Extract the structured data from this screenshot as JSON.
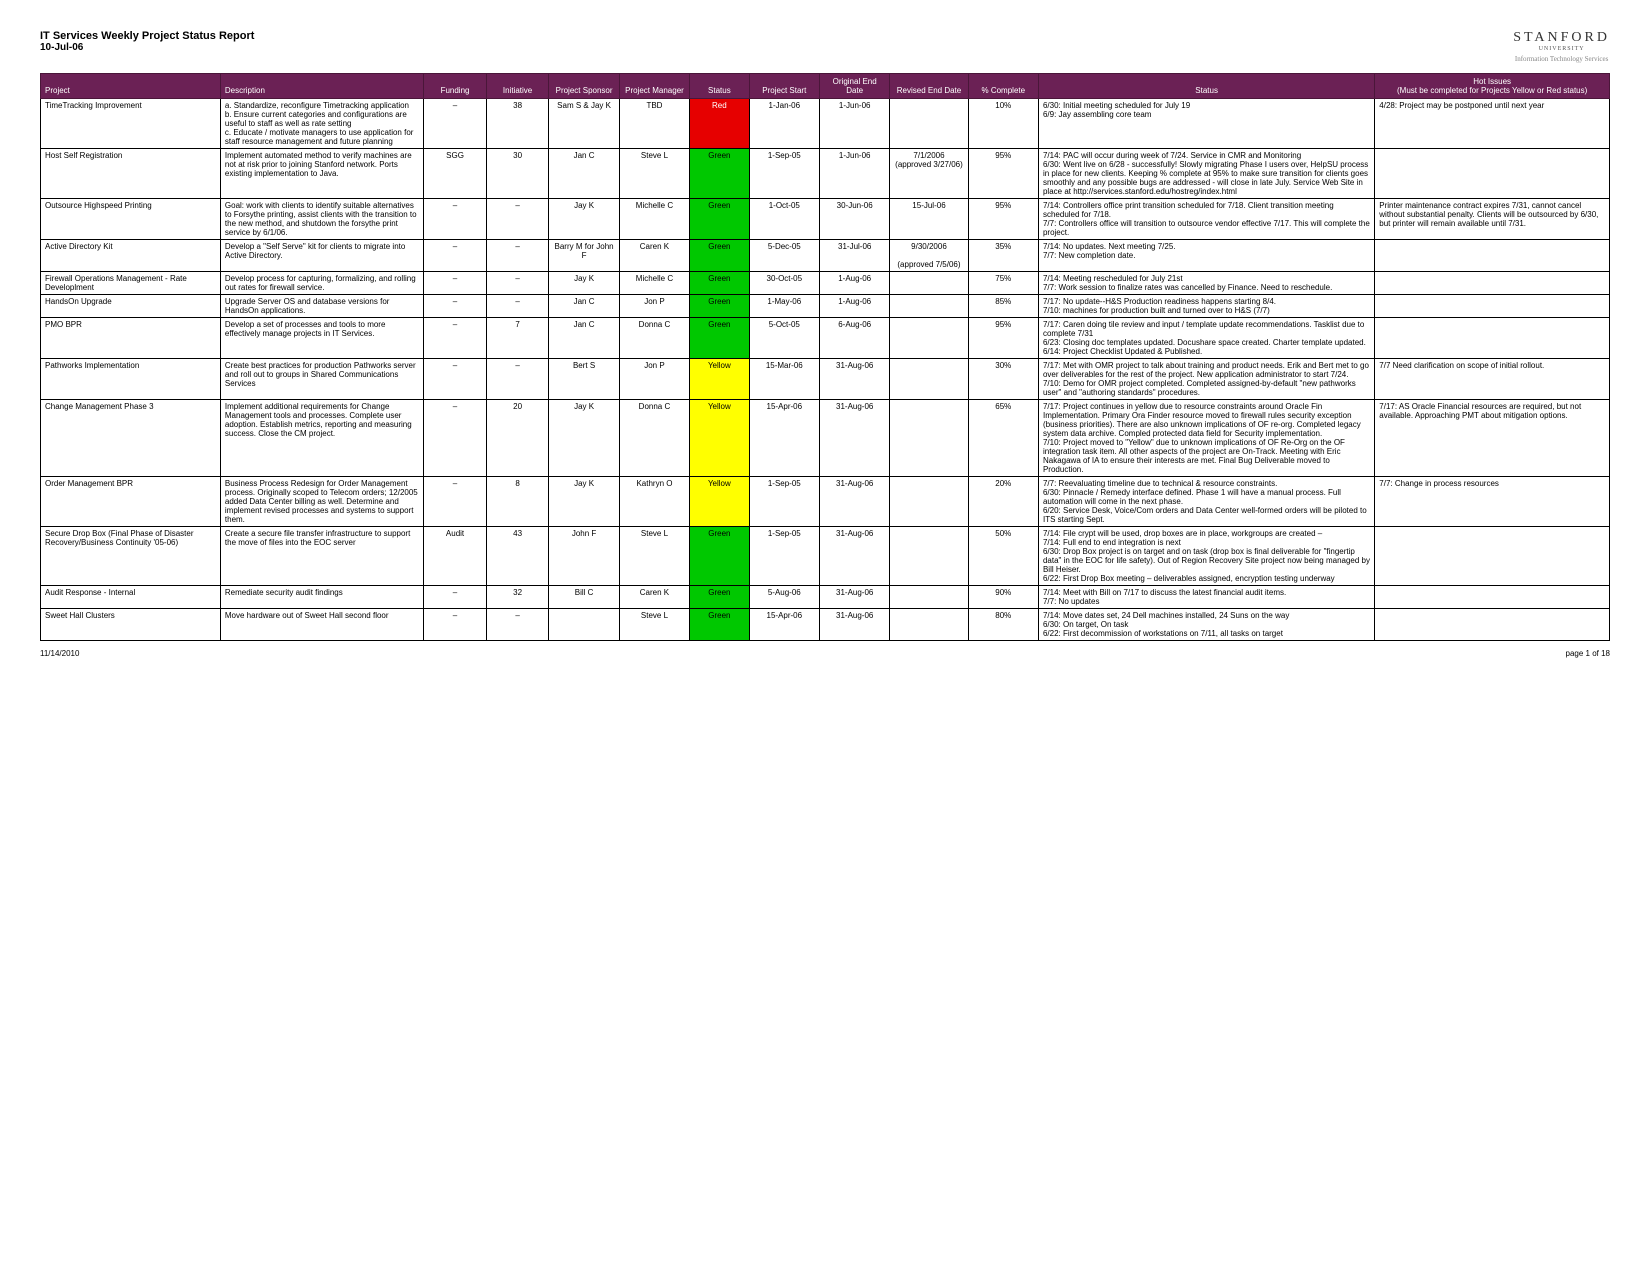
{
  "header": {
    "title": "IT Services Weekly Project Status Report",
    "date": "10-Jul-06",
    "org": "STANFORD",
    "org_sub": "UNIVERSITY",
    "org_sub2": "Information Technology Services"
  },
  "columns": [
    "Project",
    "Description",
    "Funding",
    "Initiative",
    "Project Sponsor",
    "Project Manager",
    "Status",
    "Project Start",
    "Original End Date",
    "Revised End Date",
    "% Complete",
    "Status",
    "Hot Issues\n(Must be completed for Projects Yellow or Red status)"
  ],
  "rows": [
    {
      "project": "TimeTracking Improvement",
      "description": "a. Standardize, reconfigure Timetracking application\nb. Ensure current categories and configurations are useful to staff as well as rate setting\nc. Educate / motivate managers to use application for staff resource management and future planning",
      "funding": "–",
      "initiative": "38",
      "sponsor": "Sam S & Jay K",
      "manager": "TBD",
      "status": "Red",
      "status_color": "#e60000",
      "start": "1-Jan-06",
      "end": "1-Jun-06",
      "revised": "",
      "pct": "10%",
      "notes": "6/30: Initial meeting scheduled for July 19\n6/9: Jay assembling core team",
      "hot": "4/28: Project may be postponed until next year"
    },
    {
      "project": "Host Self Registration",
      "description": "Implement automated method to verify machines are not at risk prior to joining Stanford network. Ports existing implementation to Java.",
      "funding": "SGG",
      "initiative": "30",
      "sponsor": "Jan C",
      "manager": "Steve L",
      "status": "Green",
      "status_color": "#00c800",
      "start": "1-Sep-05",
      "end": "1-Jun-06",
      "revised": "7/1/2006 (approved 3/27/06)",
      "pct": "95%",
      "notes": "7/14: PAC will occur during week of 7/24. Service in CMR and Monitoring\n6/30: Went live on 6/28 - successfully! Slowly migrating Phase I users over, HelpSU process in place for new clients. Keeping % complete at 95% to make sure transition for clients goes smoothly and any possible bugs are addressed - will close in late July. Service Web Site in place at http://services.stanford.edu/hostreg/index.html",
      "hot": ""
    },
    {
      "project": "Outsource Highspeed Printing",
      "description": "Goal: work with clients to identify suitable alternatives to Forsythe printing, assist clients with the transition to the new method, and shutdown the forsythe print service by 6/1/06.",
      "funding": "–",
      "initiative": "–",
      "sponsor": "Jay K",
      "manager": "Michelle C",
      "status": "Green",
      "status_color": "#00c800",
      "start": "1-Oct-05",
      "end": "30-Jun-06",
      "revised": "15-Jul-06",
      "pct": "95%",
      "notes": "7/14: Controllers office print transition scheduled for 7/18. Client transition meeting scheduled for 7/18.\n7/7: Controllers office will transition to outsource vendor effective 7/17. This will complete the project.",
      "hot": "Printer maintenance contract expires 7/31, cannot cancel without substantial penalty. Clients will be outsourced by 6/30, but printer will remain available until 7/31."
    },
    {
      "project": "Active Directory Kit",
      "description": "Develop a \"Self Serve\" kit for clients to migrate into Active Directory.",
      "funding": "–",
      "initiative": "–",
      "sponsor": "Barry M for John F",
      "manager": "Caren K",
      "status": "Green",
      "status_color": "#00c800",
      "start": "5-Dec-05",
      "end": "31-Jul-06",
      "revised": "9/30/2006\n\n(approved 7/5/06)",
      "pct": "35%",
      "notes": "7/14: No updates. Next meeting 7/25.\n7/7: New completion date.",
      "hot": ""
    },
    {
      "project": "Firewall Operations Management - Rate Developlment",
      "description": "Develop process for capturing, formalizing, and rolling out rates for firewall service.",
      "funding": "–",
      "initiative": "–",
      "sponsor": "Jay K",
      "manager": "Michelle C",
      "status": "Green",
      "status_color": "#00c800",
      "start": "30-Oct-05",
      "end": "1-Aug-06",
      "revised": "",
      "pct": "75%",
      "notes": "7/14: Meeting rescheduled for July 21st\n7/7: Work session to finalize rates was cancelled by Finance. Need to reschedule.",
      "hot": ""
    },
    {
      "project": "HandsOn Upgrade",
      "description": "Upgrade Server OS and database versions for HandsOn applications.",
      "funding": "–",
      "initiative": "–",
      "sponsor": "Jan C",
      "manager": "Jon P",
      "status": "Green",
      "status_color": "#00c800",
      "start": "1-May-06",
      "end": "1-Aug-06",
      "revised": "",
      "pct": "85%",
      "notes": "7/17: No update--H&S Production readiness happens starting 8/4.\n7/10: machines for production built and turned over to H&S (7/7)",
      "hot": ""
    },
    {
      "project": "PMO BPR",
      "description": "Develop a set of processes and tools to more effectively manage projects in IT Services.",
      "funding": "–",
      "initiative": "7",
      "sponsor": "Jan C",
      "manager": "Donna C",
      "status": "Green",
      "status_color": "#00c800",
      "start": "5-Oct-05",
      "end": "6-Aug-06",
      "revised": "",
      "pct": "95%",
      "notes": "7/17: Caren doing tile review and input / template update recommendations. Tasklist due to complete 7/31\n6/23: Closing doc templates updated. Docushare space created. Charter template updated.\n6/14: Project Checklist Updated & Published.",
      "hot": ""
    },
    {
      "project": "Pathworks Implementation",
      "description": "Create best practices for production Pathworks server and roll out to groups in Shared Communications Services",
      "funding": "–",
      "initiative": "–",
      "sponsor": "Bert S",
      "manager": "Jon P",
      "status": "Yellow",
      "status_color": "#ffff00",
      "start": "15-Mar-06",
      "end": "31-Aug-06",
      "revised": "",
      "pct": "30%",
      "notes": "7/17: Met with OMR project to talk about training and product needs. Erik and Bert met to go over deliverables for the rest of the project. New application administrator to start 7/24.\n7/10: Demo for OMR project completed. Completed assigned-by-default \"new pathworks user\" and \"authoring standards\" procedures.",
      "hot": "7/7 Need clarification on scope of initial rollout."
    },
    {
      "project": "Change Management Phase 3",
      "description": "Implement additional requirements for Change Management tools and processes. Complete user adoption. Establish metrics, reporting and measuring success. Close the CM project.",
      "funding": "–",
      "initiative": "20",
      "sponsor": "Jay K",
      "manager": "Donna C",
      "status": "Yellow",
      "status_color": "#ffff00",
      "start": "15-Apr-06",
      "end": "31-Aug-06",
      "revised": "",
      "pct": "65%",
      "notes": "7/17: Project continues in yellow due to resource constraints around Oracle Fin Implementation. Primary Ora Finder resource moved to firewall rules security exception (business priorities). There are also unknown implications of OF re-org. Completed legacy system data archive. Compled protected data field for Security implementation.\n7/10: Project moved to \"Yellow\" due to unknown implications of OF Re-Org on the OF integration task item. All other aspects of the project are On-Track. Meeting with Eric Nakagawa of IA to ensure their interests are met. Final Bug Deliverable moved to Production.",
      "hot": "7/17: AS Oracle Financial resources are required, but not available. Approaching PMT about mitigation options."
    },
    {
      "project": "Order Management BPR",
      "description": "Business Process Redesign for Order Management process. Originally scoped to Telecom orders; 12/2005 added Data Center billing as well. Determine and implement revised processes and systems to support them.",
      "funding": "–",
      "initiative": "8",
      "sponsor": "Jay K",
      "manager": "Kathryn O",
      "status": "Yellow",
      "status_color": "#ffff00",
      "start": "1-Sep-05",
      "end": "31-Aug-06",
      "revised": "",
      "pct": "20%",
      "notes": "7/7: Reevaluating timeline due to technical & resource constraints.\n6/30: Pinnacle / Remedy interface defined. Phase 1 will have a manual process. Full automation will come in the next phase.\n6/20: Service Desk, Voice/Com orders and Data Center well-formed orders will be piloted to ITS starting Sept.",
      "hot": "7/7: Change in process resources"
    },
    {
      "project": "Secure Drop Box (Final Phase of Disaster Recovery/Business Continuity '05-06)",
      "description": "Create a secure file transfer infrastructure to support the move of files into the EOC server",
      "funding": "Audit",
      "initiative": "43",
      "sponsor": "John F",
      "manager": "Steve L",
      "status": "Green",
      "status_color": "#00c800",
      "start": "1-Sep-05",
      "end": "31-Aug-06",
      "revised": "",
      "pct": "50%",
      "notes": "7/14: File crypt will be used, drop boxes are in place, workgroups are created –\n7/14: Full end to end integration is next\n6/30: Drop Box project is on target and on task (drop box is final deliverable for \"fingertip data\" in the EOC for life safety). Out of Region Recovery Site project now being managed by Bill Heiser.\n6/22: First Drop Box meeting – deliverables assigned, encryption testing underway",
      "hot": ""
    },
    {
      "project": "Audit Response - Internal",
      "description": "Remediate security audit findings",
      "funding": "–",
      "initiative": "32",
      "sponsor": "Bill C",
      "manager": "Caren K",
      "status": "Green",
      "status_color": "#00c800",
      "start": "5-Aug-06",
      "end": "31-Aug-06",
      "revised": "",
      "pct": "90%",
      "notes": "7/14: Meet with Bill on 7/17 to discuss the latest financial audit items.\n7/7: No updates",
      "hot": ""
    },
    {
      "project": "Sweet Hall Clusters",
      "description": "Move hardware out of Sweet Hall second floor",
      "funding": "–",
      "initiative": "–",
      "sponsor": "",
      "manager": "Steve L",
      "status": "Green",
      "status_color": "#00c800",
      "start": "15-Apr-06",
      "end": "31-Aug-06",
      "revised": "",
      "pct": "80%",
      "notes": "7/14: Move dates set, 24 Dell machines installed, 24 Suns on the way\n6/30: On target, On task\n6/22: First decommission of workstations on 7/11, all tasks on target",
      "hot": ""
    }
  ],
  "footer": {
    "date": "11/14/2010",
    "page": "page 1 of 18"
  }
}
